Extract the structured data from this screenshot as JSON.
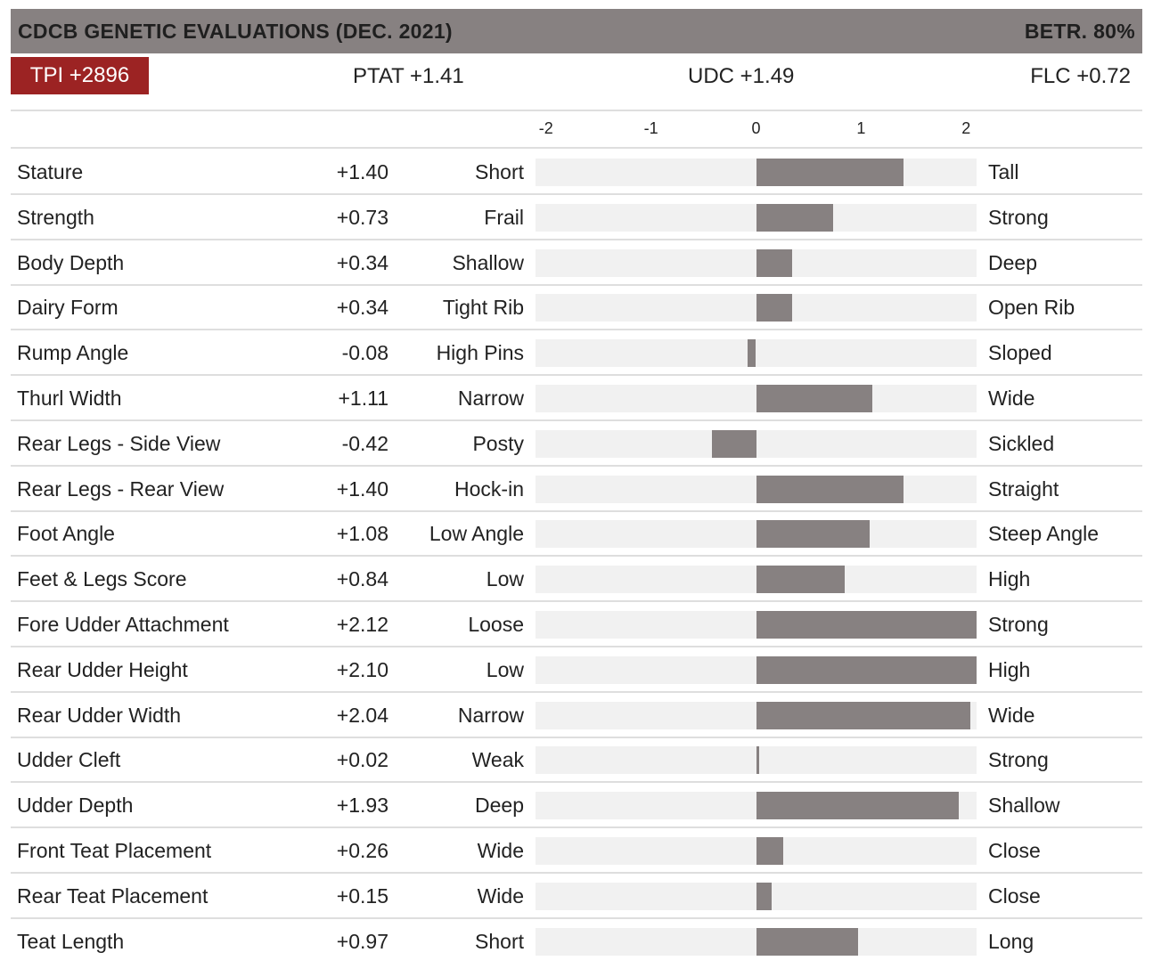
{
  "header": {
    "title": "CDCB GENETIC EVALUATIONS (DEC. 2021)",
    "betr": "BETR. 80%"
  },
  "summary": {
    "tpi": "TPI +2896",
    "ptat": "PTAT +1.41",
    "udc": "UDC +1.49",
    "flc": "FLC +0.72"
  },
  "colors": {
    "header_bg": "#878181",
    "tpi_bg": "#9c2323",
    "bar": "#878181",
    "track": "#f1f1f1"
  },
  "chart_data": {
    "type": "bar",
    "orientation": "horizontal",
    "xlim": [
      -2.1,
      2.1
    ],
    "ticks": [
      "-2",
      "-1",
      "0",
      "1",
      "2"
    ],
    "traits": [
      {
        "name": "Stature",
        "value": 1.4,
        "label": "+1.40",
        "low": "Short",
        "high": "Tall"
      },
      {
        "name": "Strength",
        "value": 0.73,
        "label": "+0.73",
        "low": "Frail",
        "high": "Strong"
      },
      {
        "name": "Body Depth",
        "value": 0.34,
        "label": "+0.34",
        "low": "Shallow",
        "high": "Deep"
      },
      {
        "name": "Dairy Form",
        "value": 0.34,
        "label": "+0.34",
        "low": "Tight Rib",
        "high": "Open Rib"
      },
      {
        "name": "Rump Angle",
        "value": -0.08,
        "label": "-0.08",
        "low": "High Pins",
        "high": "Sloped"
      },
      {
        "name": "Thurl Width",
        "value": 1.11,
        "label": "+1.11",
        "low": "Narrow",
        "high": "Wide"
      },
      {
        "name": "Rear Legs - Side View",
        "value": -0.42,
        "label": "-0.42",
        "low": "Posty",
        "high": "Sickled"
      },
      {
        "name": "Rear Legs - Rear View",
        "value": 1.4,
        "label": "+1.40",
        "low": "Hock-in",
        "high": "Straight"
      },
      {
        "name": "Foot Angle",
        "value": 1.08,
        "label": "+1.08",
        "low": "Low Angle",
        "high": "Steep Angle"
      },
      {
        "name": "Feet & Legs Score",
        "value": 0.84,
        "label": "+0.84",
        "low": "Low",
        "high": "High"
      },
      {
        "name": "Fore Udder Attachment",
        "value": 2.12,
        "label": "+2.12",
        "low": "Loose",
        "high": "Strong"
      },
      {
        "name": "Rear Udder Height",
        "value": 2.1,
        "label": "+2.10",
        "low": "Low",
        "high": "High"
      },
      {
        "name": "Rear Udder Width",
        "value": 2.04,
        "label": "+2.04",
        "low": "Narrow",
        "high": "Wide"
      },
      {
        "name": "Udder Cleft",
        "value": 0.02,
        "label": "+0.02",
        "low": "Weak",
        "high": "Strong"
      },
      {
        "name": "Udder Depth",
        "value": 1.93,
        "label": "+1.93",
        "low": "Deep",
        "high": "Shallow"
      },
      {
        "name": "Front Teat Placement",
        "value": 0.26,
        "label": "+0.26",
        "low": "Wide",
        "high": "Close"
      },
      {
        "name": "Rear Teat Placement",
        "value": 0.15,
        "label": "+0.15",
        "low": "Wide",
        "high": "Close"
      },
      {
        "name": "Teat Length",
        "value": 0.97,
        "label": "+0.97",
        "low": "Short",
        "high": "Long"
      }
    ]
  }
}
